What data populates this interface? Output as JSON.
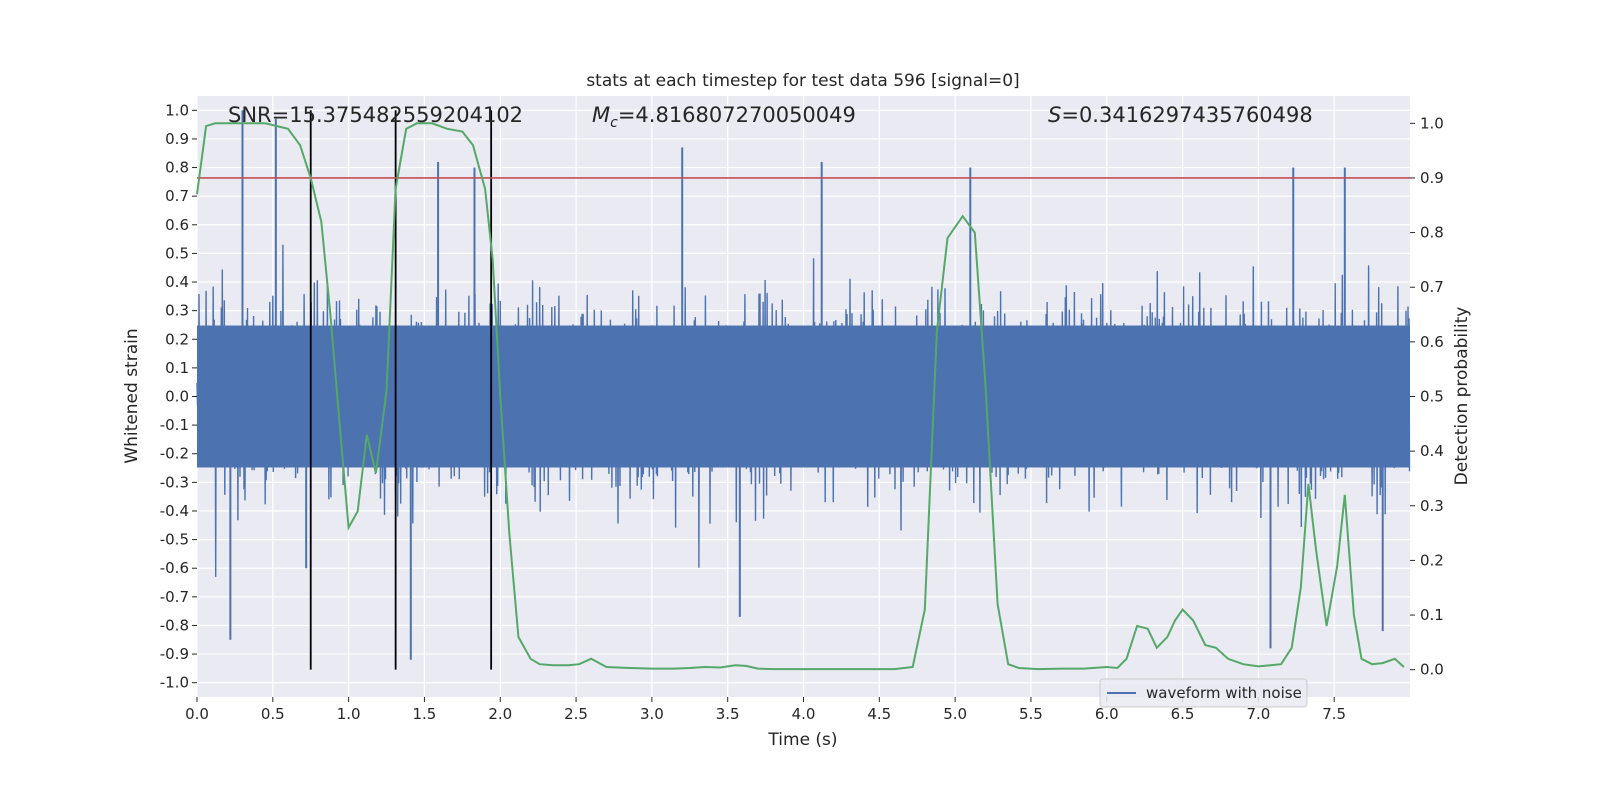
{
  "chart_data": {
    "type": "line",
    "title": "stats at each timestep for test data 596 [signal=0]",
    "xlabel": "Time (s)",
    "ylabel_left": "Whitened strain",
    "ylabel_right": "Detection probability",
    "xlim": [
      0.0,
      8.0
    ],
    "ylim_left": [
      -1.05,
      1.05
    ],
    "ylim_right": [
      -0.05,
      1.05
    ],
    "x_ticks": [
      "0.0",
      "0.5",
      "1.0",
      "1.5",
      "2.0",
      "2.5",
      "3.0",
      "3.5",
      "4.0",
      "4.5",
      "5.0",
      "5.5",
      "6.0",
      "6.5",
      "7.0",
      "7.5"
    ],
    "y_ticks_left": [
      "-1.0",
      "-0.9",
      "-0.8",
      "-0.7",
      "-0.6",
      "-0.5",
      "-0.4",
      "-0.3",
      "-0.2",
      "-0.1",
      "0.0",
      "0.1",
      "0.2",
      "0.3",
      "0.4",
      "0.5",
      "0.6",
      "0.7",
      "0.8",
      "0.9",
      "1.0"
    ],
    "y_ticks_right": [
      "0.0",
      "0.1",
      "0.2",
      "0.3",
      "0.4",
      "0.5",
      "0.6",
      "0.7",
      "0.8",
      "0.9",
      "1.0"
    ],
    "annotations": {
      "snr": "SNR=15.375482559204102",
      "mc_symbol": "M",
      "mc_sub": "c",
      "mc_value": "=4.816807270050049",
      "s_symbol": "S",
      "s_value": "=0.3416297435760498"
    },
    "threshold": {
      "value": 0.9,
      "axis": "right",
      "color": "#c44e52"
    },
    "event_lines": [
      0.75,
      1.31,
      1.94
    ],
    "legend": {
      "entries": [
        "waveform with noise"
      ],
      "location": "lower-right"
    },
    "series": [
      {
        "name": "waveform with noise",
        "axis": "left",
        "color": "#4c72b0",
        "kind": "noise-envelope",
        "duration": 8.0,
        "typical_range": [
          -0.4,
          0.4
        ],
        "peaks": [
          {
            "x": 0.22,
            "y": -0.85
          },
          {
            "x": 0.3,
            "y": 1.0
          },
          {
            "x": 0.52,
            "y": 0.97
          },
          {
            "x": 0.72,
            "y": -0.6
          },
          {
            "x": 1.41,
            "y": -0.92
          },
          {
            "x": 1.59,
            "y": 0.82
          },
          {
            "x": 1.83,
            "y": 0.8
          },
          {
            "x": 3.2,
            "y": 0.87
          },
          {
            "x": 3.58,
            "y": -0.77
          },
          {
            "x": 4.12,
            "y": 0.82
          },
          {
            "x": 5.1,
            "y": 0.8
          },
          {
            "x": 7.08,
            "y": -0.88
          },
          {
            "x": 7.23,
            "y": 0.8
          },
          {
            "x": 7.57,
            "y": 0.8
          },
          {
            "x": 7.82,
            "y": -0.82
          }
        ]
      },
      {
        "name": "detection probability",
        "axis": "right",
        "color": "#55a868",
        "x": [
          0.0,
          0.06,
          0.12,
          0.2,
          0.3,
          0.45,
          0.6,
          0.68,
          0.75,
          0.82,
          0.88,
          0.95,
          1.0,
          1.06,
          1.12,
          1.18,
          1.25,
          1.31,
          1.38,
          1.45,
          1.55,
          1.65,
          1.75,
          1.82,
          1.9,
          1.95,
          2.0,
          2.06,
          2.12,
          2.2,
          2.26,
          2.35,
          2.45,
          2.52,
          2.6,
          2.7,
          2.85,
          3.0,
          3.15,
          3.25,
          3.35,
          3.45,
          3.55,
          3.62,
          3.7,
          3.8,
          4.0,
          4.2,
          4.4,
          4.6,
          4.72,
          4.8,
          4.88,
          4.95,
          5.05,
          5.13,
          5.2,
          5.28,
          5.35,
          5.42,
          5.55,
          5.7,
          5.85,
          6.0,
          6.07,
          6.13,
          6.2,
          6.27,
          6.33,
          6.4,
          6.45,
          6.5,
          6.57,
          6.65,
          6.72,
          6.8,
          6.9,
          7.0,
          7.08,
          7.15,
          7.22,
          7.28,
          7.33,
          7.38,
          7.45,
          7.52,
          7.57,
          7.63,
          7.68,
          7.75,
          7.82,
          7.9,
          7.96
        ],
        "y": [
          0.87,
          0.995,
          1.0,
          1.0,
          1.0,
          1.0,
          0.99,
          0.96,
          0.9,
          0.82,
          0.65,
          0.42,
          0.26,
          0.29,
          0.43,
          0.36,
          0.51,
          0.88,
          0.99,
          1.0,
          1.0,
          0.99,
          0.985,
          0.96,
          0.88,
          0.75,
          0.5,
          0.25,
          0.06,
          0.02,
          0.01,
          0.008,
          0.008,
          0.01,
          0.02,
          0.005,
          0.003,
          0.002,
          0.002,
          0.003,
          0.005,
          0.004,
          0.008,
          0.007,
          0.002,
          0.001,
          0.001,
          0.001,
          0.001,
          0.001,
          0.005,
          0.11,
          0.62,
          0.79,
          0.83,
          0.8,
          0.52,
          0.12,
          0.01,
          0.003,
          0.001,
          0.002,
          0.002,
          0.005,
          0.003,
          0.02,
          0.08,
          0.075,
          0.04,
          0.06,
          0.09,
          0.11,
          0.09,
          0.045,
          0.04,
          0.02,
          0.01,
          0.006,
          0.008,
          0.01,
          0.04,
          0.15,
          0.34,
          0.22,
          0.08,
          0.19,
          0.32,
          0.1,
          0.02,
          0.01,
          0.012,
          0.02,
          0.005
        ]
      }
    ]
  }
}
